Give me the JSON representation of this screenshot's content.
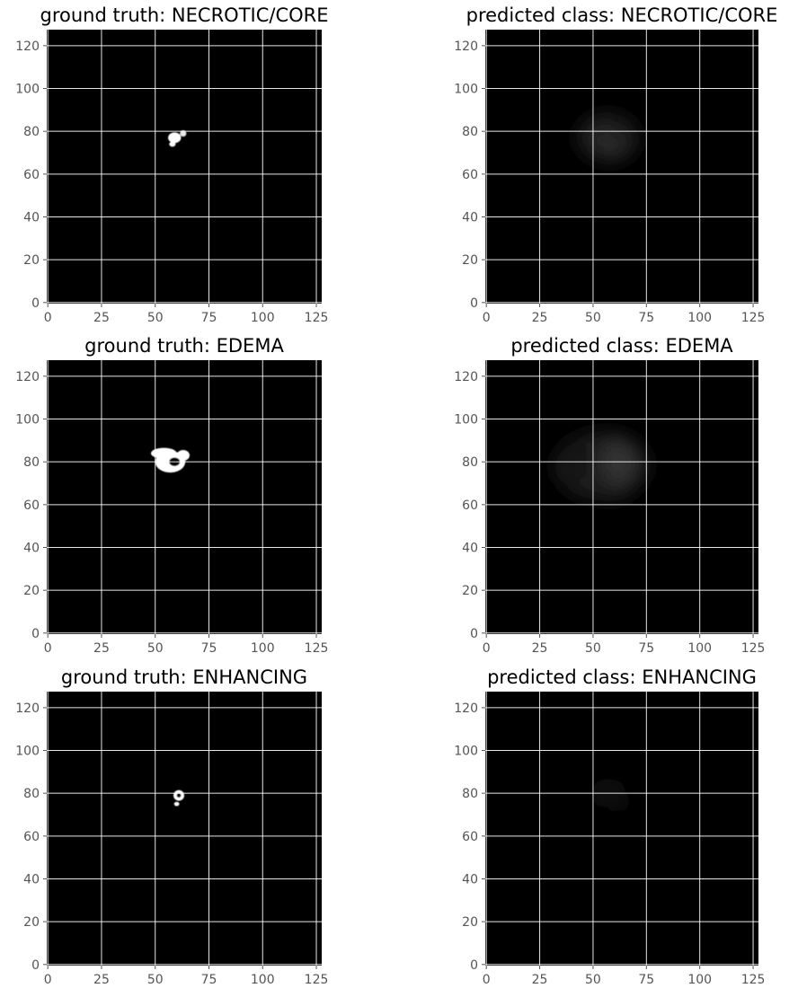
{
  "chart_data": [
    {
      "type": "heatmap",
      "title": "ground truth: NECROTIC/CORE",
      "x_ticks": [
        0,
        25,
        50,
        75,
        100,
        125
      ],
      "y_ticks": [
        0,
        20,
        40,
        60,
        80,
        100,
        120
      ],
      "xlim": [
        -0.5,
        127.5
      ],
      "ylim": [
        127.5,
        -0.5
      ],
      "grid": true,
      "colormap": "gray",
      "blobs": [
        {
          "cx": 59,
          "cy": 77,
          "rx": 3,
          "ry": 2.5,
          "intensity": 1.0
        },
        {
          "cx": 63,
          "cy": 79,
          "rx": 1.5,
          "ry": 1.5,
          "intensity": 0.9
        },
        {
          "cx": 58,
          "cy": 74,
          "rx": 1.5,
          "ry": 1.2,
          "intensity": 1.0
        }
      ]
    },
    {
      "type": "heatmap",
      "title": "predicted class: NECROTIC/CORE",
      "x_ticks": [
        0,
        25,
        50,
        75,
        100,
        125
      ],
      "y_ticks": [
        0,
        20,
        40,
        60,
        80,
        100,
        120
      ],
      "xlim": [
        -0.5,
        127.5
      ],
      "ylim": [
        127.5,
        -0.5
      ],
      "grid": true,
      "colormap": "gray",
      "blobs": [
        {
          "cx": 57,
          "cy": 77,
          "rx": 14,
          "ry": 11,
          "intensity": 0.14
        },
        {
          "cx": 59,
          "cy": 74,
          "rx": 7,
          "ry": 6,
          "intensity": 0.16
        },
        {
          "cx": 63,
          "cy": 80,
          "rx": 5,
          "ry": 5,
          "intensity": 0.12
        }
      ]
    },
    {
      "type": "heatmap",
      "title": "ground truth: EDEMA",
      "x_ticks": [
        0,
        25,
        50,
        75,
        100,
        125
      ],
      "y_ticks": [
        0,
        20,
        40,
        60,
        80,
        100,
        120
      ],
      "xlim": [
        -0.5,
        127.5
      ],
      "ylim": [
        127.5,
        -0.5
      ],
      "grid": true,
      "colormap": "gray",
      "blobs": [
        {
          "cx": 57,
          "cy": 80,
          "rx": 7,
          "ry": 5,
          "intensity": 1.0
        },
        {
          "cx": 54,
          "cy": 84,
          "rx": 6,
          "ry": 2.5,
          "intensity": 1.0
        },
        {
          "cx": 63,
          "cy": 83,
          "rx": 3,
          "ry": 2.5,
          "intensity": 1.0
        },
        {
          "cx": 59,
          "cy": 80,
          "rx": 2.5,
          "ry": 2,
          "intensity": 0.0
        }
      ]
    },
    {
      "type": "heatmap",
      "title": "predicted class: EDEMA",
      "x_ticks": [
        0,
        25,
        50,
        75,
        100,
        125
      ],
      "y_ticks": [
        0,
        20,
        40,
        60,
        80,
        100,
        120
      ],
      "xlim": [
        -0.5,
        127.5
      ],
      "ylim": [
        127.5,
        -0.5
      ],
      "grid": true,
      "colormap": "gray",
      "blobs": [
        {
          "cx": 54,
          "cy": 78,
          "rx": 22,
          "ry": 16,
          "intensity": 0.1
        },
        {
          "cx": 62,
          "cy": 80,
          "rx": 9,
          "ry": 11,
          "intensity": 0.2
        },
        {
          "cx": 61,
          "cy": 64,
          "rx": 4,
          "ry": 3,
          "intensity": 0.12
        },
        {
          "cx": 45,
          "cy": 80,
          "rx": 6,
          "ry": 8,
          "intensity": 0.08
        }
      ]
    },
    {
      "type": "heatmap",
      "title": "ground truth: ENHANCING",
      "x_ticks": [
        0,
        25,
        50,
        75,
        100,
        125
      ],
      "y_ticks": [
        0,
        20,
        40,
        60,
        80,
        100,
        120
      ],
      "xlim": [
        -0.5,
        127.5
      ],
      "ylim": [
        127.5,
        -0.5
      ],
      "grid": true,
      "colormap": "gray",
      "blobs": [
        {
          "cx": 61,
          "cy": 79,
          "rx": 2.5,
          "ry": 2.5,
          "intensity": 1.0
        },
        {
          "cx": 60,
          "cy": 75,
          "rx": 1.2,
          "ry": 1,
          "intensity": 1.0
        },
        {
          "cx": 61,
          "cy": 79,
          "rx": 1,
          "ry": 1,
          "intensity": 0.0
        }
      ]
    },
    {
      "type": "heatmap",
      "title": "predicted class: ENHANCING",
      "x_ticks": [
        0,
        25,
        50,
        75,
        100,
        125
      ],
      "y_ticks": [
        0,
        20,
        40,
        60,
        80,
        100,
        120
      ],
      "xlim": [
        -0.5,
        127.5
      ],
      "ylim": [
        127.5,
        -0.5
      ],
      "grid": true,
      "colormap": "gray",
      "blobs": [
        {
          "cx": 61,
          "cy": 78,
          "rx": 4,
          "ry": 4,
          "intensity": 0.3
        },
        {
          "cx": 57,
          "cy": 80,
          "rx": 8,
          "ry": 7,
          "intensity": 0.06
        }
      ]
    }
  ]
}
